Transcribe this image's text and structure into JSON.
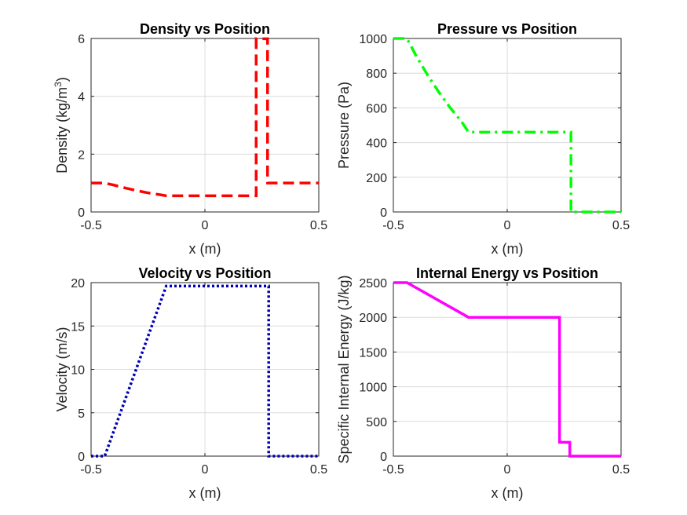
{
  "chart_data": [
    {
      "id": "density",
      "type": "line",
      "title": "Density vs Position",
      "xlabel": "x (m)",
      "ylabel": "Density (kg/m",
      "ylabel_superscript": "3",
      "ylabel_suffix": ")",
      "xlim": [
        -0.5,
        0.5
      ],
      "ylim": [
        0,
        6
      ],
      "xticks": [
        -0.5,
        0,
        0.5
      ],
      "xtick_labels": [
        "-0.5",
        "0",
        "0.5"
      ],
      "yticks": [
        0,
        2,
        4,
        6
      ],
      "ytick_labels": [
        "0",
        "2",
        "4",
        "6"
      ],
      "grid": true,
      "series": [
        {
          "color": "#ff0000",
          "line_style": "dashed",
          "x": [
            -0.5,
            -0.44,
            -0.4,
            -0.35,
            -0.3,
            -0.25,
            -0.2,
            -0.17,
            -0.1,
            0,
            0.1,
            0.2,
            0.225,
            0.225,
            0.275,
            0.275,
            0.5
          ],
          "y": [
            1.0,
            1.0,
            0.93,
            0.83,
            0.74,
            0.66,
            0.6,
            0.56,
            0.56,
            0.56,
            0.56,
            0.56,
            0.56,
            5.99,
            5.99,
            1.0,
            1.0
          ]
        }
      ]
    },
    {
      "id": "pressure",
      "type": "line",
      "title": "Pressure vs Position",
      "xlabel": "x (m)",
      "ylabel": "Pressure (Pa)",
      "xlim": [
        -0.5,
        0.5
      ],
      "ylim": [
        0,
        1000
      ],
      "xticks": [
        -0.5,
        0,
        0.5
      ],
      "xtick_labels": [
        "-0.5",
        "0",
        "0.5"
      ],
      "yticks": [
        0,
        200,
        400,
        600,
        800,
        1000
      ],
      "ytick_labels": [
        "0",
        "200",
        "400",
        "600",
        "800",
        "1000"
      ],
      "grid": true,
      "series": [
        {
          "color": "#00ff00",
          "line_style": "dashdot",
          "x": [
            -0.5,
            -0.44,
            -0.4,
            -0.35,
            -0.3,
            -0.25,
            -0.2,
            -0.17,
            0,
            0.1,
            0.2,
            0.28,
            0.28,
            0.5
          ],
          "y": [
            1000,
            1000,
            900,
            790,
            690,
            600,
            520,
            460,
            460,
            460,
            460,
            460,
            0,
            0
          ]
        }
      ]
    },
    {
      "id": "velocity",
      "type": "line",
      "title": "Velocity vs Position",
      "xlabel": "x (m)",
      "ylabel": "Velocity (m/s)",
      "xlim": [
        -0.5,
        0.5
      ],
      "ylim": [
        0,
        20
      ],
      "xticks": [
        -0.5,
        0,
        0.5
      ],
      "xtick_labels": [
        "-0.5",
        "0",
        "0.5"
      ],
      "yticks": [
        0,
        5,
        10,
        15,
        20
      ],
      "ytick_labels": [
        "0",
        "5",
        "10",
        "15",
        "20"
      ],
      "grid": true,
      "series": [
        {
          "color": "#0000b3",
          "line_style": "dotted",
          "x": [
            -0.5,
            -0.44,
            -0.17,
            0.28,
            0.28,
            0.5
          ],
          "y": [
            0,
            0,
            19.6,
            19.6,
            0,
            0
          ]
        }
      ]
    },
    {
      "id": "internal-energy",
      "type": "line",
      "title": "Internal Energy vs Position",
      "xlabel": "x (m)",
      "ylabel": "Specific Internal Energy (J/kg)",
      "xlim": [
        -0.5,
        0.5
      ],
      "ylim": [
        0,
        2500
      ],
      "xticks": [
        -0.5,
        0,
        0.5
      ],
      "xtick_labels": [
        "-0.5",
        "0",
        "0.5"
      ],
      "yticks": [
        0,
        500,
        1000,
        1500,
        2000,
        2500
      ],
      "ytick_labels": [
        "0",
        "500",
        "1000",
        "1500",
        "2000",
        "2500"
      ],
      "grid": true,
      "series": [
        {
          "color": "#ff00ff",
          "line_style": "solid",
          "x": [
            -0.5,
            -0.44,
            -0.17,
            0.23,
            0.23,
            0.275,
            0.275,
            0.5
          ],
          "y": [
            2500,
            2500,
            2000,
            2000,
            200,
            200,
            0,
            0
          ]
        }
      ]
    }
  ]
}
